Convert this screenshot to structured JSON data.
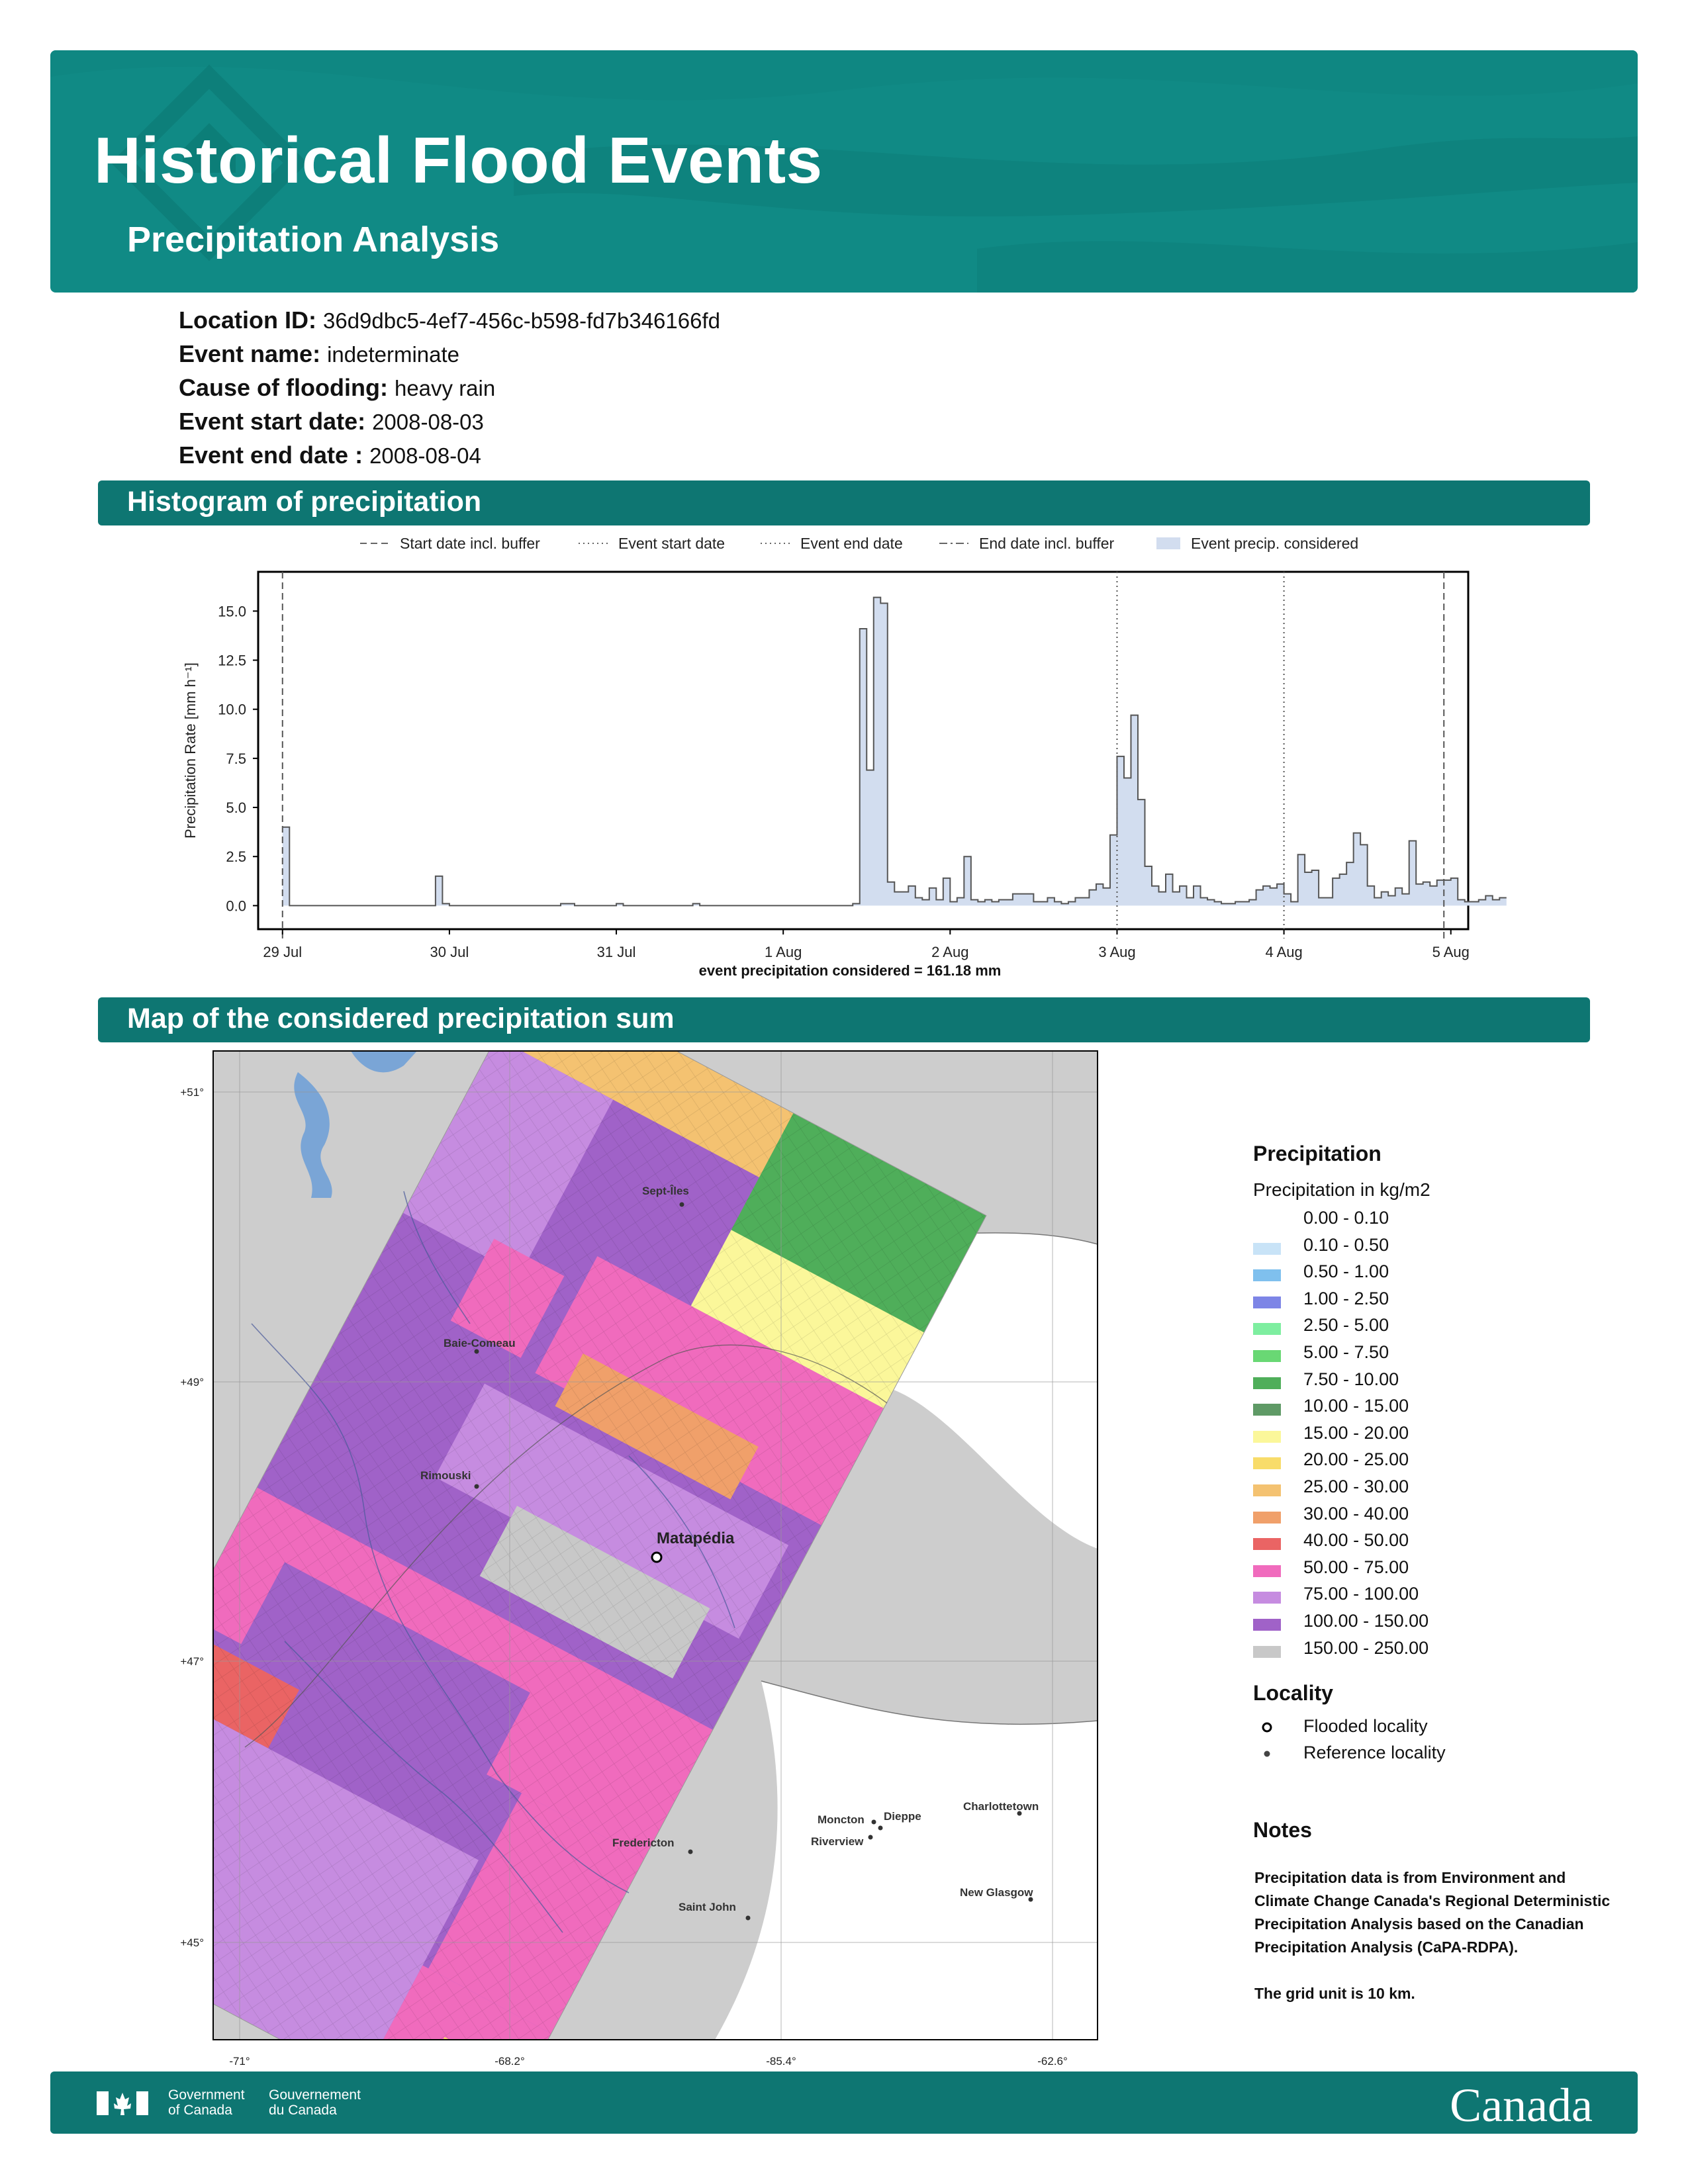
{
  "header": {
    "title": "Historical Flood Events",
    "subtitle": "Precipitation Analysis",
    "bg_color": "#108a85",
    "logo_icon": "house-on-water-icon"
  },
  "info": {
    "location_id_label": "Location ID:",
    "location_id": "36d9dbc5-4ef7-456c-b598-fd7b346166fd",
    "event_name_label": "Event name:",
    "event_name": "indeterminate",
    "cause_label": "Cause of flooding:",
    "cause": "heavy rain",
    "start_label": "Event start date:",
    "start": "2008-08-03",
    "end_label": "Event end date :",
    "end": "2008-08-04"
  },
  "sections": {
    "histogram": "Histogram of precipitation",
    "map": "Map of the considered precipitation sum"
  },
  "chart_data": {
    "type": "area",
    "ylabel": "Precipitation Rate [mm h⁻¹]",
    "xlabel": "event precipitation considered = 161.18 mm",
    "ylim": [
      -1.2,
      17
    ],
    "yticks": [
      "0.0",
      "2.5",
      "5.0",
      "7.5",
      "10.0",
      "12.5",
      "15.0"
    ],
    "xticks": [
      "29 Jul",
      "30 Jul",
      "31 Jul",
      "1 Aug",
      "2 Aug",
      "3 Aug",
      "4 Aug",
      "5 Aug"
    ],
    "legend_position": "top",
    "legend": [
      {
        "label": "Start date incl. buffer",
        "style": "dashed"
      },
      {
        "label": "Event start date",
        "style": "dotted"
      },
      {
        "label": "Event end date",
        "style": "dotted"
      },
      {
        "label": "End date incl. buffer",
        "style": "dashdot"
      },
      {
        "label": "Event precip. considered",
        "style": "fill"
      }
    ],
    "vlines": [
      {
        "x_hours": 0,
        "style": "dashed"
      },
      {
        "x_hours": 120,
        "style": "dotted"
      },
      {
        "x_hours": 144,
        "style": "dotted"
      },
      {
        "x_hours": 167,
        "style": "dashed"
      }
    ],
    "series": [
      {
        "values": [
          4.0,
          0.0,
          0.0,
          0.0,
          0.0,
          0.0,
          0.0,
          0.0,
          0.0,
          0.0,
          0.0,
          0.0,
          0.0,
          0.0,
          0.0,
          0.0,
          0.0,
          0.0,
          0.0,
          0.0,
          0.0,
          0.0,
          1.5,
          0.1,
          0.0,
          0.0,
          0.0,
          0.0,
          0.0,
          0.0,
          0.0,
          0.0,
          0.0,
          0.0,
          0.0,
          0.0,
          0.0,
          0.0,
          0.0,
          0.0,
          0.1,
          0.1,
          0.0,
          0.0,
          0.0,
          0.0,
          0.0,
          0.0,
          0.1,
          0.0,
          0.0,
          0.0,
          0.0,
          0.0,
          0.0,
          0.0,
          0.0,
          0.0,
          0.0,
          0.1,
          0.0,
          0.0,
          0.0,
          0.0,
          0.0,
          0.0,
          0.0,
          0.0,
          0.0,
          0.0,
          0.0,
          0.0,
          0.0,
          0.0,
          0.0,
          0.0,
          0.0,
          0.0,
          0.0,
          0.0,
          0.0,
          0.0,
          0.1,
          14.1,
          6.9,
          15.7,
          15.4,
          1.2,
          0.7,
          0.7,
          1.0,
          0.4,
          0.3,
          0.9,
          0.3,
          1.4,
          0.2,
          0.4,
          2.5,
          0.3,
          0.2,
          0.3,
          0.2,
          0.3,
          0.3,
          0.6,
          0.6,
          0.6,
          0.2,
          0.2,
          0.4,
          0.2,
          0.1,
          0.2,
          0.4,
          0.4,
          0.8,
          1.1,
          0.9,
          3.6,
          7.6,
          6.5,
          9.7,
          5.4,
          2.0,
          1.0,
          0.7,
          1.6,
          0.7,
          1.0,
          0.4,
          1.0,
          0.4,
          0.3,
          0.2,
          0.1,
          0.1,
          0.2,
          0.2,
          0.3,
          0.8,
          1.0,
          0.9,
          1.1,
          0.6,
          0.2,
          2.6,
          1.7,
          1.8,
          0.4,
          0.4,
          1.4,
          1.6,
          2.2,
          3.7,
          3.1,
          1.0,
          0.4,
          0.7,
          0.5,
          0.9,
          0.6,
          3.3,
          1.1,
          1.2,
          1.0,
          1.3,
          1.3,
          1.4,
          0.3,
          0.2,
          0.2,
          0.3,
          0.5,
          0.3,
          0.4
        ]
      }
    ]
  },
  "map": {
    "lat_labels": [
      "+51°",
      "+49°",
      "+47°",
      "+45°"
    ],
    "lon_labels": [
      "-71°",
      "-68.2°",
      "-85.4°",
      "-62.6°"
    ],
    "places": [
      {
        "name": "Sept-Îles",
        "type": "reference"
      },
      {
        "name": "Baie-Comeau",
        "type": "reference"
      },
      {
        "name": "Rimouski",
        "type": "reference"
      },
      {
        "name": "Matapédia",
        "type": "flooded"
      },
      {
        "name": "Fredericton",
        "type": "reference"
      },
      {
        "name": "Moncton",
        "type": "reference"
      },
      {
        "name": "Dieppe",
        "type": "reference"
      },
      {
        "name": "Riverview",
        "type": "reference"
      },
      {
        "name": "Saint John",
        "type": "reference"
      },
      {
        "name": "Charlottetown",
        "type": "reference"
      },
      {
        "name": "New Glasgow",
        "type": "reference"
      }
    ]
  },
  "legend": {
    "precip_title": "Precipitation",
    "precip_sub": "Precipitation in kg/m2",
    "classes": [
      {
        "label": "0.00 - 0.10",
        "color": "#ffffff"
      },
      {
        "label": "0.10 - 0.50",
        "color": "#c8e3f7"
      },
      {
        "label": "0.50 - 1.00",
        "color": "#7fc0ee"
      },
      {
        "label": "1.00 - 2.50",
        "color": "#7d85e6"
      },
      {
        "label": "2.50 - 5.00",
        "color": "#7eeea0"
      },
      {
        "label": "5.00 - 7.50",
        "color": "#69d874"
      },
      {
        "label": "7.50 - 10.00",
        "color": "#4fae5a"
      },
      {
        "label": "10.00 - 15.00",
        "color": "#5f9a66"
      },
      {
        "label": "15.00 - 20.00",
        "color": "#fbf79a"
      },
      {
        "label": "20.00 - 25.00",
        "color": "#f8dc6a"
      },
      {
        "label": "25.00 - 30.00",
        "color": "#f4c271"
      },
      {
        "label": "30.00 - 40.00",
        "color": "#f0a06a"
      },
      {
        "label": "40.00 - 50.00",
        "color": "#ea6464"
      },
      {
        "label": "50.00 - 75.00",
        "color": "#f06bbd"
      },
      {
        "label": "75.00 - 100.00",
        "color": "#c68ce0"
      },
      {
        "label": "100.00 - 150.00",
        "color": "#a062c8"
      },
      {
        "label": "150.00 - 250.00",
        "color": "#c8c8c8"
      }
    ],
    "locality_title": "Locality",
    "flooded_label": "Flooded locality",
    "reference_label": "Reference locality",
    "notes_title": "Notes",
    "notes_text": "Precipitation data is from Environment and Climate Change Canada's Regional Deterministic Precipitation Analysis based on the Canadian Precipitation Analysis (CaPA-RDPA).",
    "grid_note": "The grid unit is 10 km."
  },
  "footer": {
    "gov_en_1": "Government",
    "gov_en_2": "of Canada",
    "gov_fr_1": "Gouvernement",
    "gov_fr_2": "du Canada",
    "wordmark": "Canada",
    "bg_color": "#0e7672"
  }
}
